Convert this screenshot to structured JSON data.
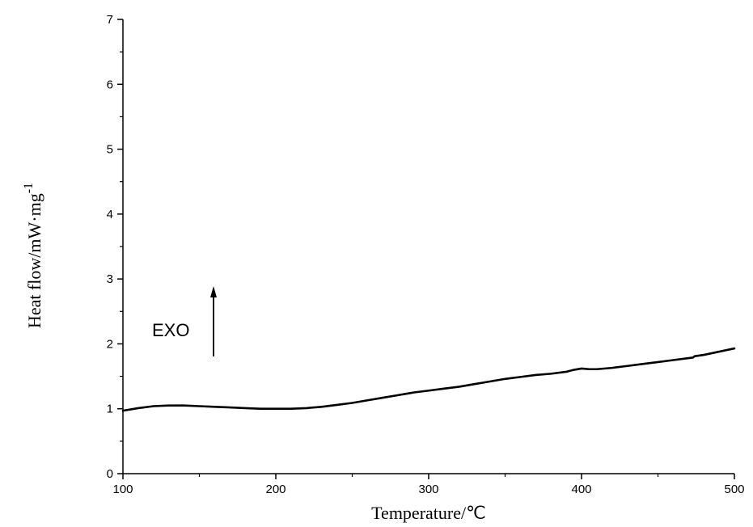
{
  "chart_data": {
    "type": "line",
    "xlabel": "Temperature/℃",
    "ylabel": "Heat flow/mW·mg",
    "ylabel_superscript": "-1",
    "xlim": [
      100,
      500
    ],
    "ylim": [
      0,
      7
    ],
    "xticks": [
      100,
      200,
      300,
      400,
      500
    ],
    "yticks": [
      0,
      1,
      2,
      3,
      4,
      5,
      6,
      7
    ],
    "grid": false,
    "legend": "none",
    "annotation": {
      "text": "EXO",
      "arrow": "up"
    },
    "series": [
      {
        "color": "#000000",
        "x": [
          100,
          110,
          120,
          130,
          140,
          150,
          160,
          170,
          180,
          190,
          200,
          210,
          220,
          230,
          240,
          250,
          260,
          270,
          280,
          290,
          300,
          310,
          320,
          330,
          340,
          350,
          360,
          370,
          380,
          390,
          395,
          400,
          405,
          410,
          420,
          430,
          440,
          450,
          460,
          470,
          473,
          474,
          480,
          490,
          500
        ],
        "y": [
          0.97,
          1.01,
          1.04,
          1.05,
          1.05,
          1.04,
          1.03,
          1.02,
          1.01,
          1.0,
          1.0,
          1.0,
          1.01,
          1.03,
          1.06,
          1.09,
          1.13,
          1.17,
          1.21,
          1.25,
          1.28,
          1.31,
          1.34,
          1.38,
          1.42,
          1.46,
          1.49,
          1.52,
          1.54,
          1.57,
          1.6,
          1.62,
          1.61,
          1.61,
          1.63,
          1.66,
          1.69,
          1.72,
          1.75,
          1.78,
          1.79,
          1.81,
          1.83,
          1.88,
          1.93
        ]
      }
    ]
  }
}
